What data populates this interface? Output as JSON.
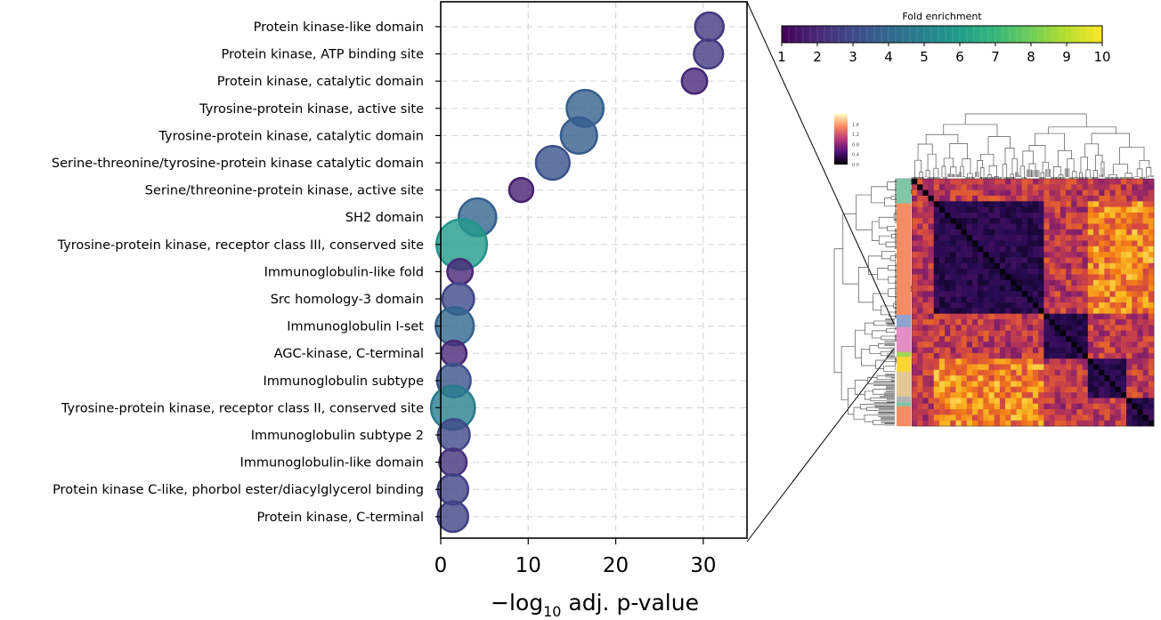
{
  "chart_data": [
    {
      "type": "scatter",
      "xlabel_prefix": "−log",
      "xlabel_sub": "10",
      "xlabel_suffix": " adj. p-value",
      "xlim": [
        0,
        35
      ],
      "xticks": [
        0,
        10,
        20,
        30
      ],
      "grid": true,
      "categories": [
        "Protein kinase-like domain",
        "Protein kinase, ATP binding site",
        "Protein kinase, catalytic domain",
        "Tyrosine-protein kinase, active site",
        "Tyrosine-protein kinase, catalytic domain",
        "Serine-threonine/tyrosine-protein kinase catalytic domain",
        "Serine/threonine-protein kinase, active site",
        "SH2 domain",
        "Tyrosine-protein kinase, receptor class III, conserved site",
        "Immunoglobulin-like fold",
        "Src homology-3 domain",
        "Immunoglobulin I-set",
        "AGC-kinase, C-terminal",
        "Immunoglobulin subtype",
        "Tyrosine-protein kinase, receptor class II, conserved site",
        "Immunoglobulin subtype 2",
        "Immunoglobulin-like domain",
        "Protein kinase C-like, phorbol ester/diacylglycerol binding",
        "Protein kinase, C-terminal"
      ],
      "x": [
        30.7,
        30.6,
        29.0,
        16.5,
        15.8,
        12.8,
        9.2,
        4.2,
        2.4,
        2.2,
        2.0,
        1.6,
        1.5,
        1.5,
        1.4,
        1.5,
        1.4,
        1.4,
        1.4
      ],
      "fold_enrichment": [
        2.5,
        2.6,
        2.0,
        3.8,
        3.7,
        3.3,
        1.8,
        3.9,
        5.9,
        2.0,
        3.0,
        4.0,
        2.0,
        3.3,
        4.9,
        3.0,
        2.3,
        2.8,
        2.8
      ],
      "colorbar": {
        "title": "Fold enrichment",
        "range": [
          1,
          10
        ],
        "ticks": [
          1,
          2,
          3,
          4,
          5,
          6,
          7,
          8,
          9,
          10
        ],
        "colormap": "viridis"
      }
    },
    {
      "type": "heatmap",
      "colorbar_ticks": [
        "1.6",
        "1.2",
        "0.8",
        "0.4",
        "0.0"
      ],
      "colormap": "magma",
      "row_color_bar": [
        "#7fc6a4",
        "#f98c62",
        "#8fa3cc",
        "#e58ec4",
        "#a4d455",
        "#fcd635",
        "#e3c896",
        "#b3b3b3",
        "#7fc6a4",
        "#f98c62"
      ]
    }
  ]
}
